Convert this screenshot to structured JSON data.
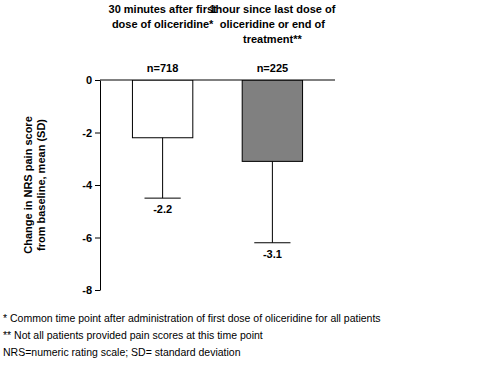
{
  "chart_data": {
    "type": "bar",
    "categories": [
      "30 minutes after first dose of oliceridine*",
      "1hour since last dose of oliceridine or end of treatment**"
    ],
    "n_labels": [
      "n=718",
      "n=225"
    ],
    "values": [
      -2.2,
      -3.1
    ],
    "errors": [
      2.3,
      3.1
    ],
    "colors": [
      "#ffffff",
      "#808080"
    ],
    "y_label": "Change in NRS pain score from baseline, mean (SD)",
    "ylim": [
      -8,
      0
    ],
    "yticks": [
      0,
      -2,
      -4,
      -6,
      -8
    ],
    "data_labels": true,
    "grid": false,
    "footnotes": [
      "* Common time point after administration of first dose of oliceridine for all patients",
      "** Not all patients provided pain scores at this time point",
      "NRS=numeric rating scale; SD= standard deviation"
    ]
  }
}
